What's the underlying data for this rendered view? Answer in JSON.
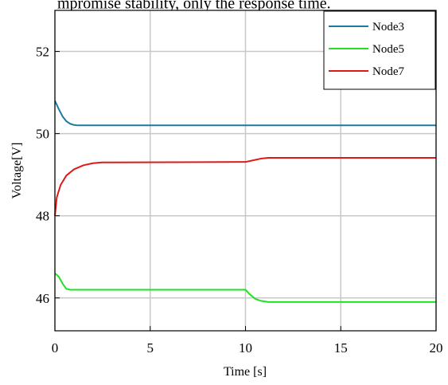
{
  "caption_fragment": "mpromise stability, only the response time.",
  "chart_data": {
    "type": "line",
    "title": "",
    "xlabel": "Time [s]",
    "ylabel": "Voltage[V]",
    "xlim": [
      0,
      20
    ],
    "ylim": [
      45.2,
      53
    ],
    "x_ticks": [
      0,
      5,
      10,
      15,
      20
    ],
    "y_ticks": [
      46,
      48,
      50,
      52
    ],
    "grid": true,
    "legend_position": "top-right",
    "series": [
      {
        "name": "Node3",
        "color": "#1f7aa0",
        "x": [
          0,
          0.2,
          0.4,
          0.6,
          0.8,
          1.0,
          1.2,
          10,
          11,
          20
        ],
        "y": [
          50.8,
          50.6,
          50.42,
          50.3,
          50.24,
          50.21,
          50.2,
          50.2,
          50.2,
          50.2
        ]
      },
      {
        "name": "Node5",
        "color": "#22e022",
        "x": [
          0,
          0.2,
          0.4,
          0.6,
          0.8,
          1.0,
          10,
          10.2,
          10.5,
          10.8,
          11.2,
          20
        ],
        "y": [
          46.6,
          46.52,
          46.35,
          46.22,
          46.2,
          46.2,
          46.2,
          46.1,
          45.98,
          45.93,
          45.9,
          45.9
        ]
      },
      {
        "name": "Node7",
        "color": "#dd1a1a",
        "x": [
          0,
          0.1,
          0.3,
          0.6,
          1.0,
          1.5,
          2.0,
          2.5,
          3.0,
          10,
          10.4,
          10.8,
          11.2,
          20
        ],
        "y": [
          48.0,
          48.45,
          48.75,
          48.98,
          49.13,
          49.23,
          49.28,
          49.3,
          49.3,
          49.31,
          49.35,
          49.39,
          49.41,
          49.41
        ]
      }
    ]
  }
}
